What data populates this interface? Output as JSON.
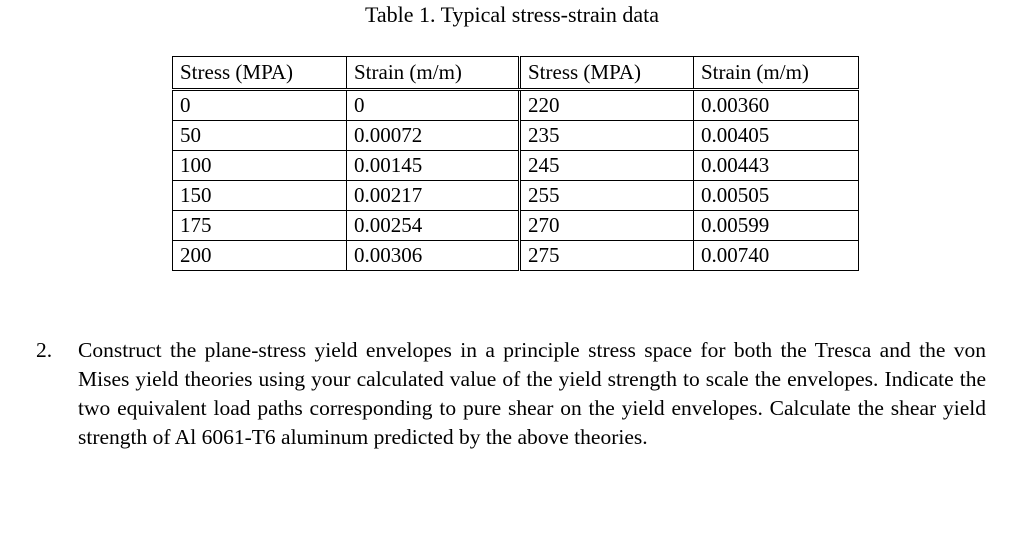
{
  "caption": "Table 1.  Typical stress-strain data",
  "table": {
    "headers": [
      "Stress (MPA)",
      "Strain (m/m)",
      "Stress (MPA)",
      "Strain (m/m)"
    ],
    "rows": [
      [
        "0",
        "0",
        "220",
        "0.00360"
      ],
      [
        "50",
        "0.00072",
        "235",
        "0.00405"
      ],
      [
        "100",
        "0.00145",
        "245",
        "0.00443"
      ],
      [
        "150",
        "0.00217",
        "255",
        "0.00505"
      ],
      [
        "175",
        "0.00254",
        "270",
        "0.00599"
      ],
      [
        "200",
        "0.00306",
        "275",
        "0.00740"
      ]
    ]
  },
  "question": {
    "number": "2.",
    "text": "Construct the plane-stress yield envelopes in a principle stress space for both the Tresca and the von Mises yield theories using your calculated value of the yield strength to scale the envelopes.  Indicate the two equivalent load paths corresponding to pure shear on the yield envelopes.  Calculate the shear yield strength of Al 6061-T6 aluminum predicted by the above theories."
  }
}
